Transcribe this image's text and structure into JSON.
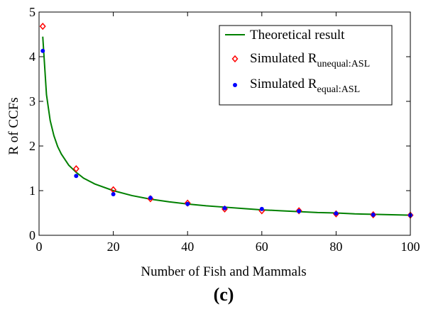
{
  "chart_data": {
    "type": "line",
    "xlabel": "Number of Fish and Mammals",
    "ylabel": "R of CCFs",
    "xlim": [
      0,
      100
    ],
    "ylim": [
      0,
      5
    ],
    "x_ticks": [
      "0",
      "20",
      "40",
      "60",
      "80",
      "100"
    ],
    "y_ticks": [
      "0",
      "1",
      "2",
      "3",
      "4",
      "5"
    ],
    "grid": false,
    "legend_position": "top-right",
    "panel_label": "(c)",
    "legend": [
      {
        "label": "Theoretical result",
        "label_sub": "",
        "marker": "line",
        "color": "#008000"
      },
      {
        "label": "Simulated R",
        "label_sub": "unequal:ASL",
        "marker": "diamond",
        "color": "#ff0000"
      },
      {
        "label": "Simulated R",
        "label_sub": "equal:ASL",
        "marker": "dot",
        "color": "#0000ff"
      }
    ],
    "series": [
      {
        "name": "Theoretical result",
        "kind": "line",
        "color": "#008000",
        "x": [
          1,
          2,
          3,
          4,
          5,
          6,
          8,
          10,
          12,
          15,
          20,
          25,
          30,
          35,
          40,
          45,
          50,
          55,
          60,
          65,
          70,
          75,
          80,
          85,
          90,
          95,
          100
        ],
        "y": [
          4.45,
          3.15,
          2.57,
          2.23,
          1.99,
          1.82,
          1.57,
          1.41,
          1.28,
          1.15,
          1.0,
          0.89,
          0.81,
          0.75,
          0.7,
          0.66,
          0.63,
          0.6,
          0.57,
          0.55,
          0.53,
          0.51,
          0.5,
          0.48,
          0.47,
          0.46,
          0.45
        ]
      },
      {
        "name": "Simulated R unequal:ASL",
        "kind": "diamond",
        "color": "#ff0000",
        "x": [
          1,
          10,
          20,
          30,
          40,
          50,
          60,
          70,
          80,
          90,
          100
        ],
        "y": [
          4.68,
          1.49,
          1.02,
          0.82,
          0.72,
          0.59,
          0.55,
          0.55,
          0.48,
          0.46,
          0.45
        ]
      },
      {
        "name": "Simulated R equal:ASL",
        "kind": "dot",
        "color": "#0000ff",
        "x": [
          1,
          10,
          20,
          30,
          40,
          50,
          60,
          70,
          80,
          90,
          100
        ],
        "y": [
          4.13,
          1.33,
          0.92,
          0.84,
          0.7,
          0.61,
          0.59,
          0.54,
          0.49,
          0.46,
          0.45
        ]
      }
    ]
  }
}
